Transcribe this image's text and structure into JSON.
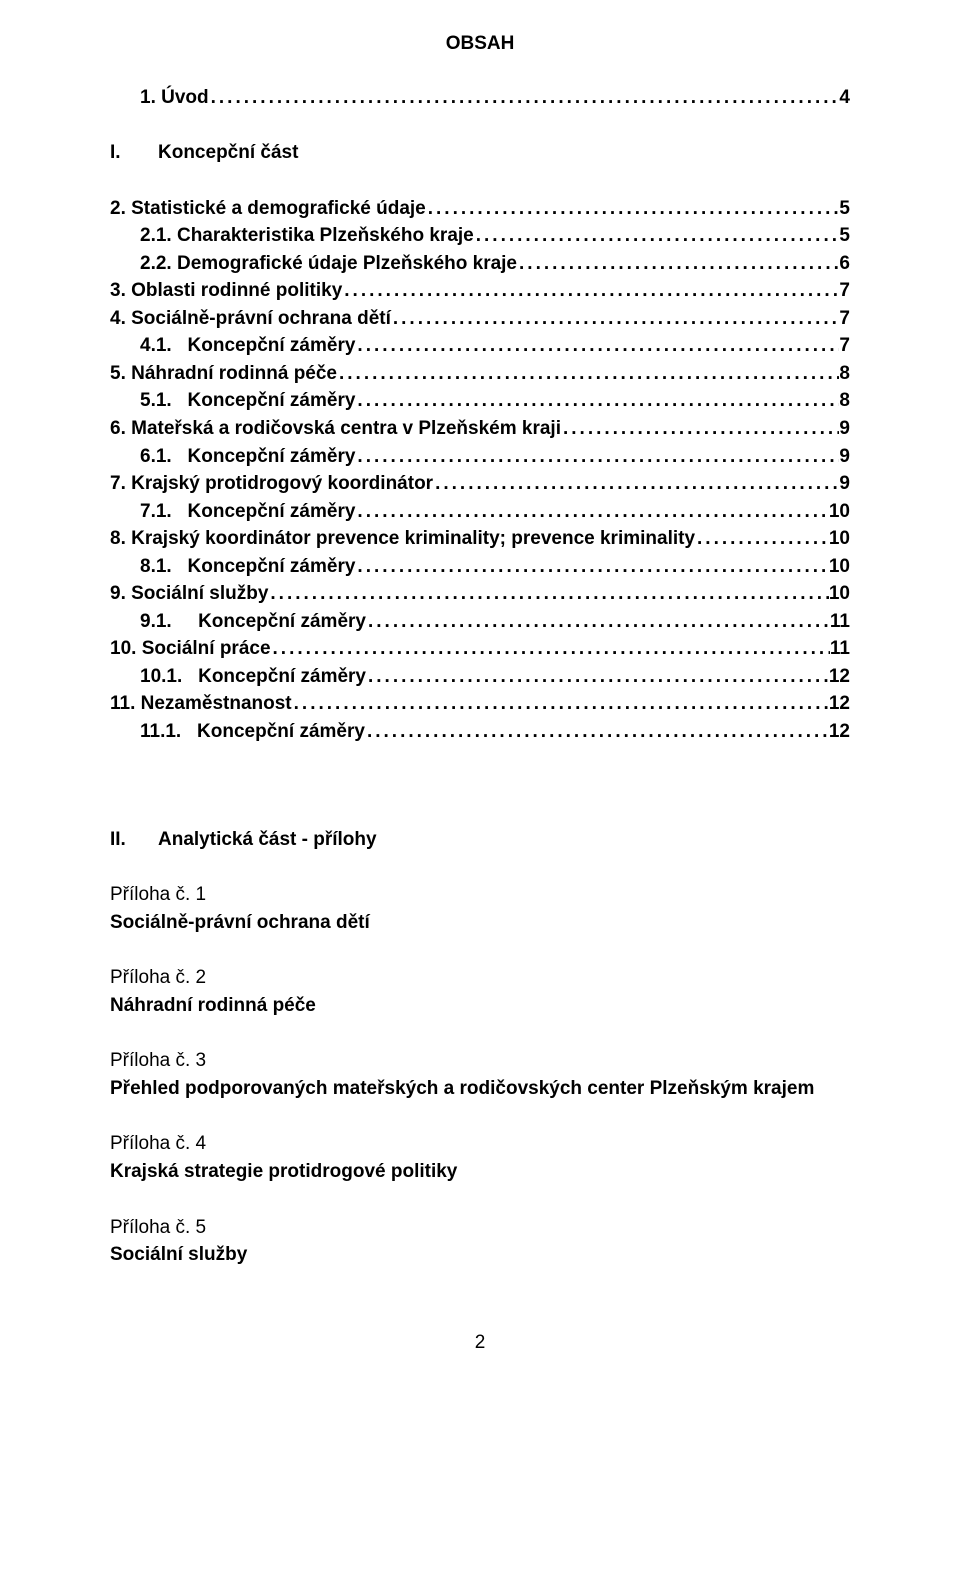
{
  "title": "OBSAH",
  "intro": {
    "label": "1. Úvod",
    "page": "4"
  },
  "part1": {
    "roman": "I.",
    "heading": "Koncepční část"
  },
  "toc": [
    {
      "label": "2. Statistické a demografické údaje",
      "page": "5",
      "cls": "indent-sec"
    },
    {
      "label": "2.1. Charakteristika Plzeňského kraje",
      "page": "5",
      "cls": "indent-sub"
    },
    {
      "label": "2.2. Demografické údaje Plzeňského kraje",
      "page": "6",
      "cls": "indent-sub"
    },
    {
      "label": "3. Oblasti rodinné politiky",
      "page": "7",
      "cls": "indent-sec"
    },
    {
      "label": "4. Sociálně-právní ochrana dětí",
      "page": "7",
      "cls": "indent-sec"
    },
    {
      "label": "4.1.   Koncepční záměry",
      "page": "7",
      "cls": "indent-sub"
    },
    {
      "label": "5. Náhradní rodinná péče",
      "page": "8",
      "cls": "indent-sec"
    },
    {
      "label": "5.1.   Koncepční záměry",
      "page": "8",
      "cls": "indent-sub"
    },
    {
      "label": "6. Mateřská a rodičovská centra v Plzeňském kraji",
      "page": "9",
      "cls": "indent-sec"
    },
    {
      "label": "6.1.   Koncepční záměry",
      "page": "9",
      "cls": "indent-sub"
    },
    {
      "label": "7. Krajský protidrogový koordinátor",
      "page": "9",
      "cls": "indent-sec"
    },
    {
      "label": "7.1.   Koncepční záměry",
      "page": "10",
      "cls": "indent-sub"
    },
    {
      "label": "8. Krajský koordinátor prevence kriminality; prevence kriminality",
      "page": "10",
      "cls": "indent-sec"
    },
    {
      "label": "8.1.   Koncepční záměry",
      "page": "10",
      "cls": "indent-sub"
    },
    {
      "label": "9. Sociální služby",
      "page": "10",
      "cls": "indent-sec"
    },
    {
      "label": "9.1.     Koncepční záměry",
      "page": "11",
      "cls": "indent-sub"
    },
    {
      "label": "10. Sociální práce",
      "page": " 11",
      "cls": "indent-sec"
    },
    {
      "label": "10.1.   Koncepční záměry",
      "page": "12",
      "cls": "indent-sub"
    },
    {
      "label": "11. Nezaměstnanost",
      "page": "12",
      "cls": "indent-sec"
    },
    {
      "label": "11.1.   Koncepční záměry",
      "page": "12",
      "cls": "indent-sub"
    }
  ],
  "part2": {
    "roman": "II.",
    "heading": "Analytická část - přílohy"
  },
  "attachments": [
    {
      "label": "Příloha č. 1",
      "title": "Sociálně-právní ochrana dětí"
    },
    {
      "label": "Příloha č. 2",
      "title": "Náhradní rodinná péče"
    },
    {
      "label": "Příloha č. 3",
      "title": "Přehled podporovaných mateřských a rodičovských center Plzeňským krajem",
      "justify": true
    },
    {
      "label": "Příloha č. 4",
      "title": "Krajská strategie protidrogové politiky"
    },
    {
      "label": "Příloha č. 5",
      "title": "Sociální služby"
    }
  ],
  "pageNumber": "2"
}
